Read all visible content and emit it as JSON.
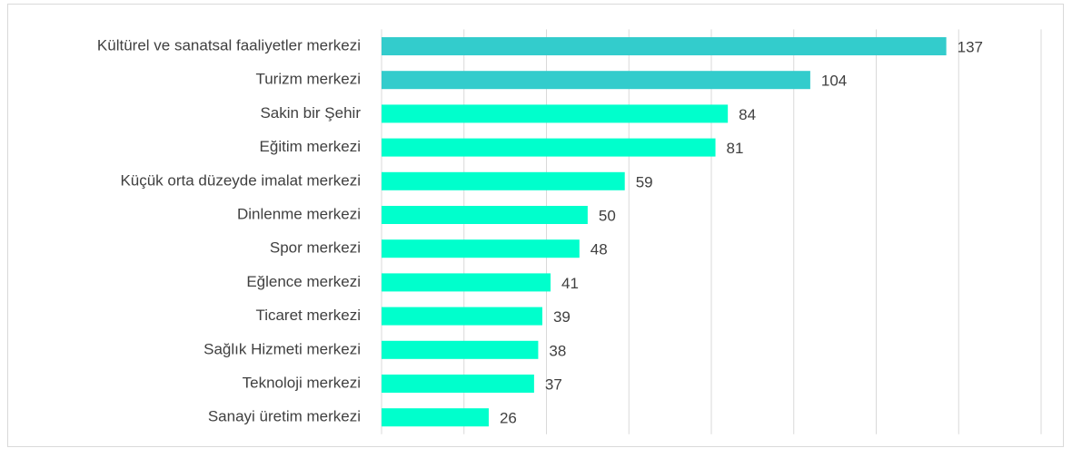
{
  "chart_data": {
    "type": "barh",
    "categories": [
      "Kültürel ve sanatsal faaliyetler merkezi",
      "Turizm merkezi",
      "Sakin bir Şehir",
      "Eğitim merkezi",
      "Küçük orta düzeyde imalat merkezi",
      "Dinlenme merkezi",
      "Spor merkezi",
      "Eğlence merkezi",
      "Ticaret merkezi",
      "Sağlık Hizmeti merkezi",
      "Teknoloji merkezi",
      "Sanayi üretim merkezi"
    ],
    "values": [
      137,
      104,
      84,
      81,
      59,
      50,
      48,
      41,
      39,
      38,
      37,
      26
    ],
    "colors": [
      "#33cccc",
      "#33cccc",
      "#00ffcc",
      "#00ffcc",
      "#00ffcc",
      "#00ffcc",
      "#00ffcc",
      "#00ffcc",
      "#00ffcc",
      "#00ffcc",
      "#00ffcc",
      "#00ffcc"
    ],
    "xlim": [
      0,
      160
    ],
    "xticks": [
      0,
      20,
      40,
      60,
      80,
      100,
      120,
      140,
      160
    ],
    "grid": true
  }
}
